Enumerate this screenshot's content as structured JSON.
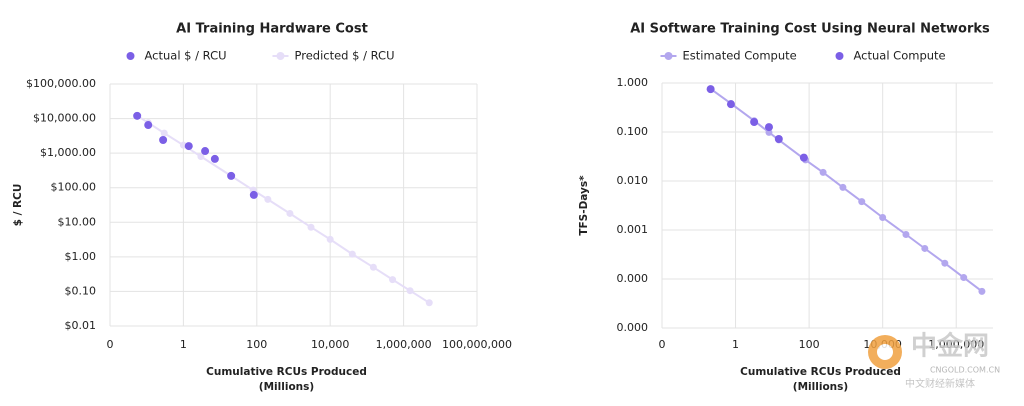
{
  "chart_data": [
    {
      "type": "line",
      "title": "AI Training Hardware Cost",
      "xscale": "log",
      "yscale": "log",
      "grid": true,
      "legend": "top",
      "xlim": [
        0.01,
        100000000
      ],
      "ylim": [
        0.01,
        100000
      ],
      "xticks": [
        {
          "value": 0.01,
          "label": "0"
        },
        1,
        100,
        {
          "value": 10000,
          "label": "10,000"
        },
        {
          "value": 1000000,
          "label": "1,000,000"
        },
        {
          "value": 100000000,
          "label": "100,000,000"
        }
      ],
      "yticks": [
        {
          "value": 100000,
          "label": "$100,000.00"
        },
        {
          "value": 10000,
          "label": "$10,000.00"
        },
        {
          "value": 1000,
          "label": "$1,000.00"
        },
        {
          "value": 100,
          "label": "$100.00"
        },
        {
          "value": 10,
          "label": "$10.00"
        },
        {
          "value": 1,
          "label": "$1.00"
        },
        {
          "value": 0.1,
          "label": "$0.10"
        },
        {
          "value": 0.01,
          "label": "$0.01"
        }
      ],
      "ylabel": "$ / RCU",
      "xlabel": [
        "Cumulative RCUs Produced",
        "(Millions)"
      ],
      "series": [
        {
          "name": "Actual $ / RCU",
          "color": "#7b5fe6",
          "mode": "markers",
          "x": [
            0.055,
            0.11,
            0.28,
            1.4,
            3.9,
            7.2,
            20,
            83
          ],
          "values": [
            12000,
            6500,
            2400,
            1600,
            1150,
            680,
            220,
            62
          ]
        },
        {
          "name": "Predicted $ / RCU",
          "color": "#e6def8",
          "mode": "lines+markers",
          "x": [
            0.055,
            0.11,
            0.3,
            1,
            3,
            20,
            80,
            200,
            800,
            3000,
            10000,
            40000,
            150000,
            500000,
            1500000,
            5000000
          ],
          "values": [
            12000,
            7600,
            3800,
            1700,
            800,
            220,
            85,
            46,
            18,
            7.2,
            3.2,
            1.2,
            0.5,
            0.22,
            0.105,
            0.047
          ]
        }
      ]
    },
    {
      "type": "line",
      "title": "AI Software Training Cost Using Neural Networks",
      "xscale": "log",
      "yscale": "log",
      "grid": true,
      "legend": "top",
      "xlim": [
        0.01,
        10000000
      ],
      "ylim": [
        1e-05,
        1
      ],
      "xticks": [
        {
          "value": 0.01,
          "label": "0"
        },
        1,
        100,
        {
          "value": 10000,
          "label": "10,000"
        },
        {
          "value": 1000000,
          "label": "1,000,000"
        }
      ],
      "yticks": [
        {
          "value": 1,
          "label": "1.000"
        },
        {
          "value": 0.1,
          "label": "0.100"
        },
        {
          "value": 0.01,
          "label": "0.010"
        },
        {
          "value": 0.001,
          "label": "0.001"
        },
        {
          "value": 0.0001,
          "label": "0.000"
        },
        {
          "value": 1e-05,
          "label": "0.000"
        }
      ],
      "ylabel": "TFS-Days*",
      "xlabel": [
        "Cumulative RCUs Produced",
        "(Millions)"
      ],
      "series": [
        {
          "name": "Estimated Compute",
          "color": "#b3a7ee",
          "mode": "lines+markers",
          "x": [
            0.21,
            0.75,
            3.2,
            8.1,
            15,
            80,
            240,
            830,
            2700,
            10000,
            43000,
            140000,
            490000,
            1600000,
            5000000
          ],
          "values": [
            0.76,
            0.38,
            0.17,
            0.098,
            0.069,
            0.027,
            0.015,
            0.0074,
            0.0038,
            0.0018,
            0.00081,
            0.00042,
            0.00021,
            0.000107,
            5.6e-05
          ]
        },
        {
          "name": "Actual Compute",
          "color": "#7b5fe6",
          "mode": "markers",
          "x": [
            0.21,
            0.75,
            3.2,
            8.1,
            15,
            72
          ],
          "values": [
            0.75,
            0.37,
            0.16,
            0.126,
            0.072,
            0.03
          ]
        }
      ]
    }
  ],
  "watermark": {
    "name": "中金网",
    "site": "CNGOLD.COM.CN",
    "tagline": "中文财经新媒体"
  }
}
